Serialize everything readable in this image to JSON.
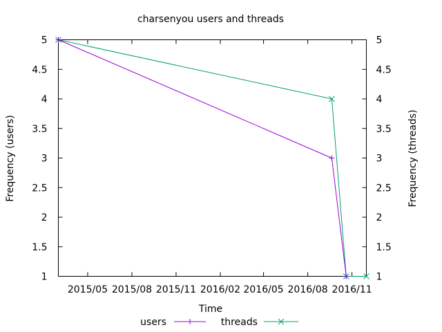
{
  "chart_data": {
    "type": "line",
    "title": "charsenyou users and threads",
    "xlabel": "Time",
    "ylabel": "Frequency (users)",
    "y2label": "Frequency (threads)",
    "x_range": [
      "2015-03-01",
      "2016-12-01"
    ],
    "x_ticks": [
      {
        "date": "2015-05-01",
        "label": "2015/05"
      },
      {
        "date": "2015-08-01",
        "label": "2015/08"
      },
      {
        "date": "2015-11-01",
        "label": "2015/11"
      },
      {
        "date": "2016-02-01",
        "label": "2016/02"
      },
      {
        "date": "2016-05-01",
        "label": "2016/05"
      },
      {
        "date": "2016-08-01",
        "label": "2016/08"
      },
      {
        "date": "2016-11-01",
        "label": "2016/11"
      }
    ],
    "ylim": [
      1,
      5
    ],
    "y_ticks": [
      {
        "value": 1,
        "label": "1"
      },
      {
        "value": 1.5,
        "label": "1.5"
      },
      {
        "value": 2,
        "label": "2"
      },
      {
        "value": 2.5,
        "label": "2.5"
      },
      {
        "value": 3,
        "label": "3"
      },
      {
        "value": 3.5,
        "label": "3.5"
      },
      {
        "value": 4,
        "label": "4"
      },
      {
        "value": 4.5,
        "label": "4.5"
      },
      {
        "value": 5,
        "label": "5"
      }
    ],
    "grid": false,
    "legend_position": "bottom-center",
    "series": [
      {
        "name": "users",
        "color": "#9400d3",
        "marker": "plus",
        "points": [
          {
            "x": "2015-03-01",
            "y": 5
          },
          {
            "x": "2016-09-20",
            "y": 3
          },
          {
            "x": "2016-10-20",
            "y": 1
          }
        ]
      },
      {
        "name": "threads",
        "color": "#009e73",
        "marker": "cross",
        "points": [
          {
            "x": "2015-03-01",
            "y": 5
          },
          {
            "x": "2016-09-20",
            "y": 4
          },
          {
            "x": "2016-10-20",
            "y": 1
          },
          {
            "x": "2016-12-01",
            "y": 1
          }
        ]
      }
    ]
  }
}
